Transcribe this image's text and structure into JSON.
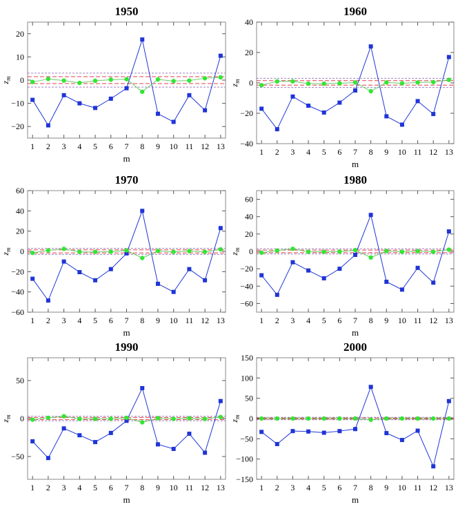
{
  "colors": {
    "blue_series": "#1f35d6",
    "green_series": "#33e633",
    "green_line": "#66cc66",
    "band_red": "#e0404a",
    "band_purple": "#a080c0",
    "frame": "#888888"
  },
  "chart_data": [
    {
      "type": "line",
      "title": "1950",
      "xlabel": "m",
      "ylabel": "z",
      "ylabel_sub": "m",
      "categories": [
        "1",
        "2",
        "3",
        "4",
        "5",
        "6",
        "7",
        "8",
        "9",
        "10",
        "11",
        "12",
        "13"
      ],
      "ylim": [
        -25,
        25
      ],
      "yticks": [
        -20,
        -10,
        0,
        10,
        20
      ],
      "ytick_labels": [
        "−20",
        "−10",
        "0",
        "10",
        "20"
      ],
      "bands": [
        1.5,
        3
      ],
      "series": [
        {
          "marker": "square",
          "color": "#1f35d6",
          "values": [
            -8.5,
            -19.5,
            -6.5,
            -10,
            -12,
            -8,
            -3.5,
            17.5,
            -14.5,
            -18,
            -6.5,
            -13,
            10.5
          ]
        },
        {
          "marker": "circle",
          "color": "#33e633",
          "values": [
            -0.8,
            0.5,
            -0.2,
            -1.2,
            -0.3,
            0.2,
            0.4,
            -5,
            0.3,
            -0.4,
            -0.2,
            0.8,
            1.2
          ]
        }
      ]
    },
    {
      "type": "line",
      "title": "1960",
      "xlabel": "m",
      "ylabel": "z",
      "ylabel_sub": "m",
      "categories": [
        "1",
        "2",
        "3",
        "4",
        "5",
        "6",
        "7",
        "8",
        "9",
        "10",
        "11",
        "12",
        "13"
      ],
      "ylim": [
        -40,
        40
      ],
      "yticks": [
        -40,
        -20,
        0,
        20,
        40
      ],
      "ytick_labels": [
        "−40",
        "−20",
        "0",
        "20",
        "40"
      ],
      "bands": [
        1.5,
        3
      ],
      "series": [
        {
          "marker": "square",
          "color": "#1f35d6",
          "values": [
            -17,
            -30.5,
            -9,
            -15,
            -19.5,
            -13,
            -5,
            24,
            -22,
            -27.5,
            -12,
            -20.5,
            17
          ]
        },
        {
          "marker": "circle",
          "color": "#33e633",
          "values": [
            -1.5,
            1,
            1,
            -0.5,
            -0.5,
            -0.3,
            0.3,
            -5.5,
            0.3,
            -0.3,
            0.3,
            0.5,
            2
          ]
        }
      ]
    },
    {
      "type": "line",
      "title": "1970",
      "xlabel": "m",
      "ylabel": "z",
      "ylabel_sub": "m",
      "categories": [
        "1",
        "2",
        "3",
        "4",
        "5",
        "6",
        "7",
        "8",
        "9",
        "10",
        "11",
        "12",
        "13"
      ],
      "ylim": [
        -60,
        60
      ],
      "yticks": [
        -60,
        -40,
        -20,
        0,
        20,
        40,
        60
      ],
      "ytick_labels": [
        "−60",
        "−40",
        "−20",
        "0",
        "20",
        "40",
        "60"
      ],
      "bands": [
        1.5,
        3
      ],
      "series": [
        {
          "marker": "square",
          "color": "#1f35d6",
          "values": [
            -27,
            -48.5,
            -10,
            -20.5,
            -28.5,
            -17.5,
            -2,
            40,
            -32,
            -40,
            -17.5,
            -28.5,
            23
          ]
        },
        {
          "marker": "circle",
          "color": "#33e633",
          "values": [
            -1.5,
            1,
            2.5,
            -0.5,
            -0.5,
            -0.3,
            1,
            -6.5,
            0.5,
            -0.5,
            0.3,
            -0.5,
            2
          ]
        }
      ]
    },
    {
      "type": "line",
      "title": "1980",
      "xlabel": "m",
      "ylabel": "z",
      "ylabel_sub": "m",
      "categories": [
        "1",
        "2",
        "3",
        "4",
        "5",
        "6",
        "7",
        "8",
        "9",
        "10",
        "11",
        "12",
        "13"
      ],
      "ylim": [
        -70,
        70
      ],
      "yticks": [
        -60,
        -40,
        -20,
        0,
        20,
        40,
        60
      ],
      "ytick_labels": [
        "−60",
        "−40",
        "−20",
        "0",
        "20",
        "40",
        "60"
      ],
      "bands": [
        1.5,
        3
      ],
      "series": [
        {
          "marker": "square",
          "color": "#1f35d6",
          "values": [
            -27.5,
            -50,
            -12.5,
            -22,
            -31,
            -20,
            -4,
            42,
            -35,
            -44,
            -19,
            -36,
            23
          ]
        },
        {
          "marker": "circle",
          "color": "#33e633",
          "values": [
            -1.5,
            1,
            3,
            -0.5,
            -0.5,
            -0.3,
            1.5,
            -7,
            0.5,
            -0.5,
            0.3,
            -0.5,
            2
          ]
        }
      ]
    },
    {
      "type": "line",
      "title": "1990",
      "xlabel": "m",
      "ylabel": "z",
      "ylabel_sub": "m",
      "categories": [
        "1",
        "2",
        "3",
        "4",
        "5",
        "6",
        "7",
        "8",
        "9",
        "10",
        "11",
        "12",
        "13"
      ],
      "ylim": [
        -80,
        80
      ],
      "yticks": [
        -50,
        0,
        50
      ],
      "ytick_labels": [
        "−50",
        "0",
        "50"
      ],
      "bands": [
        1.5,
        3
      ],
      "series": [
        {
          "marker": "square",
          "color": "#1f35d6",
          "values": [
            -30,
            -52,
            -13,
            -22,
            -31,
            -19,
            -3,
            40,
            -34,
            -40,
            -20,
            -45,
            23
          ]
        },
        {
          "marker": "circle",
          "color": "#33e633",
          "values": [
            -1.5,
            1,
            3,
            -0.5,
            -0.5,
            -0.3,
            1,
            -5,
            0.5,
            -0.5,
            0.3,
            -0.5,
            2
          ]
        }
      ]
    },
    {
      "type": "line",
      "title": "2000",
      "xlabel": "m",
      "ylabel": "z",
      "ylabel_sub": "m",
      "categories": [
        "1",
        "2",
        "3",
        "4",
        "5",
        "6",
        "7",
        "8",
        "9",
        "10",
        "11",
        "12",
        "13"
      ],
      "ylim": [
        -150,
        150
      ],
      "yticks": [
        -150,
        -100,
        -50,
        0,
        50,
        100,
        150
      ],
      "ytick_labels": [
        "−150",
        "−100",
        "−50",
        "0",
        "50",
        "100",
        "150"
      ],
      "bands": [
        1.5,
        3
      ],
      "series": [
        {
          "marker": "square",
          "color": "#1f35d6",
          "values": [
            -33,
            -63,
            -31,
            -32,
            -35,
            -31,
            -26,
            78,
            -36,
            -53,
            -30,
            -118,
            43
          ]
        },
        {
          "marker": "circle",
          "color": "#33e633",
          "values": [
            0,
            0,
            0,
            0,
            0,
            0,
            0,
            -3,
            0,
            0,
            0,
            0,
            0
          ]
        }
      ]
    }
  ]
}
